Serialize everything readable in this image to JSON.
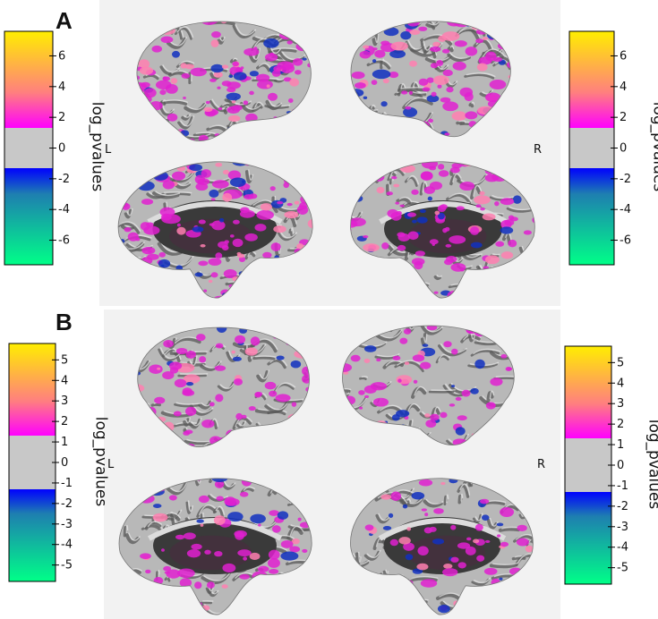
{
  "panels": [
    {
      "letter": "A",
      "left_label": "L",
      "right_label": "R",
      "colorbar_left": {
        "title": "log_pvalues",
        "ticks": [
          "6",
          "4",
          "2",
          "0",
          "-2",
          "-4",
          "-6"
        ]
      },
      "colorbar_right": {
        "title": "log_pvalues",
        "ticks": [
          "6",
          "4",
          "2",
          "0",
          "-2",
          "-4",
          "-6"
        ]
      },
      "brain_views": [
        "left-lateral",
        "right-lateral",
        "left-medial",
        "right-medial"
      ]
    },
    {
      "letter": "B",
      "left_label": "L",
      "right_label": "R",
      "colorbar_left": {
        "title": "log_pvalues",
        "ticks": [
          "5",
          "4",
          "3",
          "2",
          "1",
          "0",
          "-1",
          "-2",
          "-3",
          "-4",
          "-5"
        ]
      },
      "colorbar_right": {
        "title": "log_pvalues",
        "ticks": [
          "5",
          "4",
          "3",
          "2",
          "1",
          "0",
          "-1",
          "-2",
          "-3",
          "-4",
          "-5"
        ]
      },
      "brain_views": [
        "left-lateral",
        "right-lateral",
        "left-medial",
        "right-medial"
      ]
    }
  ],
  "colors": {
    "positive_top": "#ffee00",
    "positive_mid": "#ff7f7f",
    "positive_low": "#ff00ff",
    "neutral": "#c8c8c8",
    "negative_high": "#0000ff",
    "negative_mid": "#1e7fb0",
    "negative_low": "#00ff88",
    "cortex": "#a9a9a9",
    "medial_wall": "#3a3a3a"
  }
}
